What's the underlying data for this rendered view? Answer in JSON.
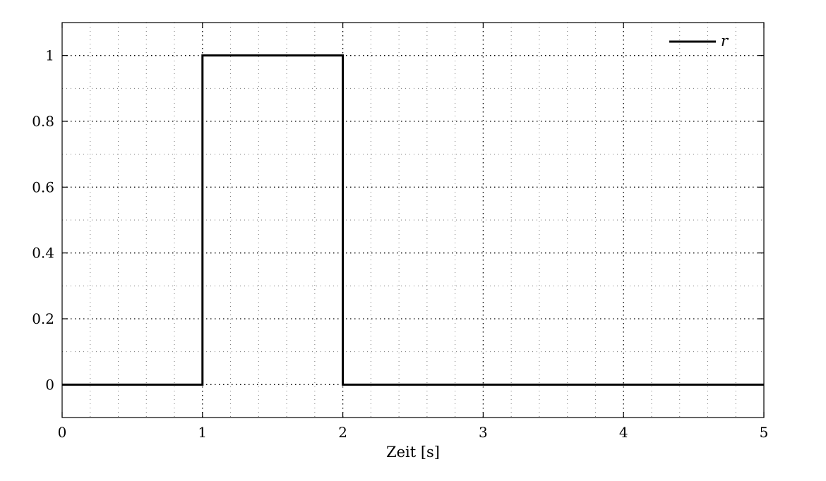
{
  "chart_data": {
    "type": "line",
    "title": "",
    "xlabel": "Zeit [s]",
    "ylabel": "",
    "xlim": [
      0,
      5
    ],
    "ylim": [
      -0.1,
      1.1
    ],
    "x_ticks": [
      0,
      1,
      2,
      3,
      4,
      5
    ],
    "x_tick_labels": [
      "0",
      "1",
      "2",
      "3",
      "4",
      "5"
    ],
    "y_ticks": [
      0,
      0.2,
      0.4,
      0.6,
      0.8,
      1
    ],
    "y_tick_labels": [
      "0",
      "0.2",
      "0.4",
      "0.6",
      "0.8",
      "1"
    ],
    "x_minor_step": 0.2,
    "y_minor_step": 0.1,
    "grid": "on",
    "legend_position": "top-right",
    "series": [
      {
        "name": "r",
        "color": "#000000",
        "x": [
          0,
          1,
          1,
          2,
          2,
          5
        ],
        "y": [
          0,
          0,
          1,
          1,
          0,
          0
        ]
      }
    ]
  }
}
